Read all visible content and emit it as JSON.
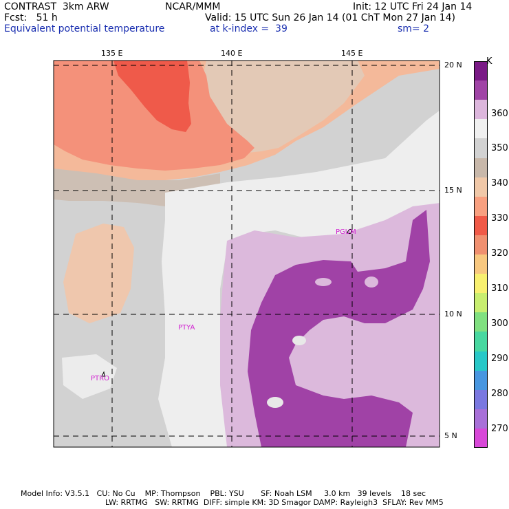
{
  "header": {
    "model": "CONTRAST  3km ARW",
    "org": "NCAR/MMM",
    "init": "Init: 12 UTC Fri 24 Jan 14",
    "fcst": "Fcst:   51 h",
    "valid": "Valid: 15 UTC Sun 26 Jan 14 (01 ChT Mon 27 Jan 14)",
    "field": "Equivalent potential temperature",
    "level": "at k-index =  39",
    "smooth": "sm= 2"
  },
  "map": {
    "lon_labels": [
      "135 E",
      "140 E",
      "145 E"
    ],
    "lat_labels": [
      "20 N",
      "15 N",
      "10 N",
      "5 N"
    ],
    "stations": [
      "PGUM",
      "PTYA",
      "PTRO"
    ]
  },
  "colorbar": {
    "unit": "K",
    "labels": [
      "360",
      "350",
      "340",
      "330",
      "320",
      "310",
      "300",
      "290",
      "280",
      "270"
    ],
    "colors": [
      "#7a1a86",
      "#a044a6",
      "#dcb6dc",
      "#f0f0f0",
      "#d2d2d2",
      "#c8b8aa",
      "#f0c8a8",
      "#f8a080",
      "#f05a48",
      "#f09070",
      "#f8c880",
      "#f8f070",
      "#c8ee70",
      "#80e080",
      "#48d8a0",
      "#28c8c8",
      "#4896e0",
      "#7a78e0",
      "#a870d8",
      "#d848d8"
    ]
  },
  "footer": {
    "line1": "Model Info: V3.5.1   CU: No Cu    MP: Thompson    PBL: YSU       SF: Noah LSM     3.0 km   39 levels    18 sec",
    "line2": "LW: RRTMG   SW: RRTMG  DIFF: simple KM: 3D Smagor DAMP: Rayleigh3  SFLAY: Rev MM5"
  }
}
